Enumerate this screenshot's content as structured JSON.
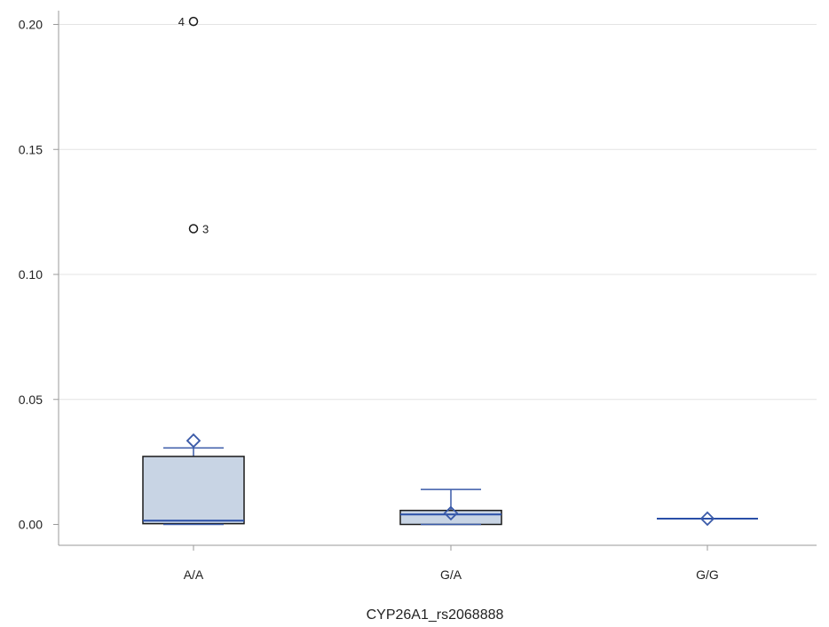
{
  "chart_data": {
    "type": "box",
    "xlabel": "CYP26A1_rs2068888",
    "ylabel": "",
    "ylim": [
      0,
      0.2
    ],
    "yticks": [
      0.0,
      0.05,
      0.1,
      0.15,
      0.2
    ],
    "ytick_labels": [
      "0.00",
      "0.05",
      "0.10",
      "0.15",
      "0.20"
    ],
    "grid": "horizontal",
    "categories": [
      "A/A",
      "G/A",
      "G/G"
    ],
    "groups": [
      {
        "category": "A/A",
        "whisker_low": 0.0,
        "q1": 0.0003,
        "median": 0.0015,
        "q3": 0.0272,
        "whisker_high": 0.0306,
        "mean": 0.0335,
        "outliers": [
          {
            "value": 0.2012,
            "label": "4",
            "label_side": "left"
          },
          {
            "value": 0.1183,
            "label": "3",
            "label_side": "right"
          }
        ]
      },
      {
        "category": "G/A",
        "whisker_low": 0.0,
        "q1": 0.0,
        "median": 0.004,
        "q3": 0.0056,
        "whisker_high": 0.014,
        "mean": 0.0045,
        "outliers": []
      },
      {
        "category": "G/G",
        "whisker_low": 0.0023,
        "q1": 0.0023,
        "median": 0.0023,
        "q3": 0.0023,
        "whisker_high": 0.0023,
        "mean": 0.0023,
        "outliers": []
      }
    ],
    "colors": {
      "box_fill": "#c8d4e4",
      "box_stroke": "#1a1a1a",
      "median": "#2a4fa8",
      "whisker": "#3a5aa8",
      "mean_marker": "#3a5aa8",
      "grid": "#e4e4e4",
      "axis": "#9a9a9a",
      "outlier": "#1a1a1a"
    }
  }
}
